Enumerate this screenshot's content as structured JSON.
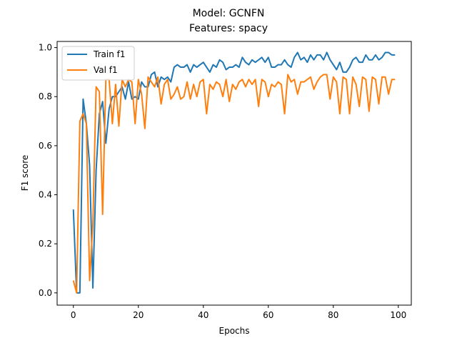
{
  "chart_data": {
    "type": "line",
    "title_line1": "Model: GCNFN",
    "title_line2": "Features: spacy",
    "xlabel": "Epochs",
    "ylabel": "F1 score",
    "xlim": [
      -5,
      104
    ],
    "ylim": [
      -0.05,
      1.025
    ],
    "xticks": [
      0,
      20,
      40,
      60,
      80,
      100
    ],
    "yticks": [
      0.0,
      0.2,
      0.4,
      0.6,
      0.8,
      1.0
    ],
    "grid": false,
    "legend_position": "upper-left",
    "series": [
      {
        "name": "Train f1",
        "color": "#1f77b4",
        "values": [
          0.34,
          0.0,
          0.0,
          0.79,
          0.69,
          0.52,
          0.02,
          0.5,
          0.73,
          0.78,
          0.61,
          0.75,
          0.8,
          0.8,
          0.82,
          0.84,
          0.79,
          0.86,
          0.79,
          0.8,
          0.79,
          0.86,
          0.84,
          0.84,
          0.89,
          0.9,
          0.84,
          0.88,
          0.87,
          0.88,
          0.86,
          0.92,
          0.93,
          0.92,
          0.92,
          0.93,
          0.9,
          0.93,
          0.92,
          0.93,
          0.94,
          0.92,
          0.9,
          0.93,
          0.92,
          0.95,
          0.94,
          0.91,
          0.92,
          0.92,
          0.93,
          0.92,
          0.96,
          0.94,
          0.93,
          0.95,
          0.94,
          0.95,
          0.96,
          0.94,
          0.96,
          0.92,
          0.92,
          0.93,
          0.93,
          0.95,
          0.93,
          0.92,
          0.96,
          0.98,
          0.95,
          0.96,
          0.94,
          0.97,
          0.95,
          0.97,
          0.97,
          0.95,
          0.98,
          0.95,
          0.93,
          0.91,
          0.94,
          0.9,
          0.9,
          0.92,
          0.95,
          0.96,
          0.94,
          0.94,
          0.97,
          0.95,
          0.95,
          0.97,
          0.95,
          0.96,
          0.98,
          0.98,
          0.97,
          0.97
        ]
      },
      {
        "name": "Val f1",
        "color": "#ff7f0e",
        "values": [
          0.05,
          0.0,
          0.7,
          0.73,
          0.69,
          0.05,
          0.28,
          0.84,
          0.82,
          0.32,
          0.87,
          0.87,
          0.69,
          0.85,
          0.68,
          0.87,
          0.84,
          0.87,
          0.86,
          0.69,
          0.87,
          0.81,
          0.67,
          0.88,
          0.86,
          0.84,
          0.88,
          0.77,
          0.85,
          0.87,
          0.79,
          0.81,
          0.84,
          0.79,
          0.8,
          0.86,
          0.79,
          0.85,
          0.8,
          0.86,
          0.87,
          0.73,
          0.85,
          0.83,
          0.86,
          0.85,
          0.8,
          0.87,
          0.78,
          0.85,
          0.83,
          0.86,
          0.87,
          0.84,
          0.87,
          0.85,
          0.87,
          0.76,
          0.87,
          0.86,
          0.8,
          0.85,
          0.84,
          0.86,
          0.85,
          0.73,
          0.89,
          0.86,
          0.87,
          0.81,
          0.86,
          0.86,
          0.87,
          0.88,
          0.83,
          0.86,
          0.88,
          0.89,
          0.89,
          0.79,
          0.88,
          0.86,
          0.73,
          0.88,
          0.87,
          0.73,
          0.88,
          0.85,
          0.76,
          0.88,
          0.87,
          0.74,
          0.88,
          0.87,
          0.77,
          0.88,
          0.88,
          0.81,
          0.87,
          0.87
        ]
      }
    ]
  }
}
